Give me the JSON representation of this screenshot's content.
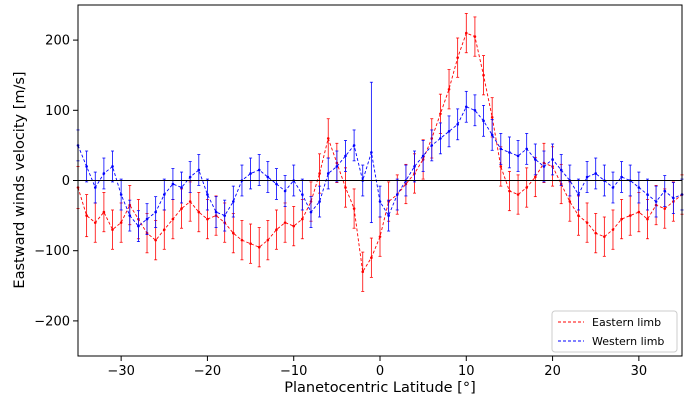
{
  "chart_data": {
    "type": "line",
    "xlabel": "Planetocentric Latitude [°]",
    "ylabel": "Eastward winds velocity [m/s]",
    "xlim": [
      -35,
      35
    ],
    "ylim": [
      -250,
      250
    ],
    "xticks": [
      -30,
      -20,
      -10,
      0,
      10,
      20,
      30
    ],
    "yticks": [
      -200,
      -100,
      0,
      100,
      200
    ],
    "x_tick_labels": [
      "−30",
      "−20",
      "−10",
      "0",
      "10",
      "20",
      "30"
    ],
    "y_tick_labels": [
      "−200",
      "−100",
      "0",
      "100",
      "200"
    ],
    "zero_line": true,
    "grid": false,
    "legend_position": "lower-right",
    "error_bars": true,
    "series": [
      {
        "name": "Eastern limb",
        "color": "#ff0000",
        "linestyle": "dashed",
        "points": [
          [
            -35,
            -10,
            30
          ],
          [
            -34,
            -50,
            30
          ],
          [
            -33,
            -60,
            28
          ],
          [
            -32,
            -45,
            28
          ],
          [
            -31,
            -70,
            28
          ],
          [
            -30,
            -60,
            28
          ],
          [
            -29,
            -35,
            28
          ],
          [
            -28,
            -55,
            28
          ],
          [
            -27,
            -75,
            28
          ],
          [
            -26,
            -85,
            28
          ],
          [
            -25,
            -70,
            28
          ],
          [
            -24,
            -55,
            28
          ],
          [
            -23,
            -40,
            28
          ],
          [
            -22,
            -30,
            28
          ],
          [
            -21,
            -45,
            28
          ],
          [
            -20,
            -55,
            28
          ],
          [
            -19,
            -50,
            28
          ],
          [
            -18,
            -60,
            28
          ],
          [
            -17,
            -75,
            28
          ],
          [
            -16,
            -85,
            28
          ],
          [
            -15,
            -90,
            28
          ],
          [
            -14,
            -95,
            28
          ],
          [
            -13,
            -85,
            28
          ],
          [
            -12,
            -70,
            28
          ],
          [
            -11,
            -60,
            28
          ],
          [
            -10,
            -65,
            28
          ],
          [
            -9,
            -55,
            28
          ],
          [
            -8,
            -30,
            28
          ],
          [
            -7,
            10,
            28
          ],
          [
            -6,
            60,
            28
          ],
          [
            -5,
            25,
            28
          ],
          [
            -4,
            -10,
            28
          ],
          [
            -3,
            -40,
            28
          ],
          [
            -2,
            -130,
            28
          ],
          [
            -1,
            -110,
            28
          ],
          [
            0,
            -80,
            28
          ],
          [
            1,
            -30,
            28
          ],
          [
            2,
            -20,
            28
          ],
          [
            3,
            -5,
            28
          ],
          [
            4,
            10,
            28
          ],
          [
            5,
            30,
            28
          ],
          [
            6,
            60,
            28
          ],
          [
            7,
            95,
            28
          ],
          [
            8,
            130,
            28
          ],
          [
            9,
            175,
            28
          ],
          [
            10,
            210,
            28
          ],
          [
            11,
            205,
            28
          ],
          [
            12,
            150,
            28
          ],
          [
            13,
            90,
            28
          ],
          [
            14,
            20,
            28
          ],
          [
            15,
            -15,
            28
          ],
          [
            16,
            -20,
            28
          ],
          [
            17,
            -10,
            28
          ],
          [
            18,
            5,
            28
          ],
          [
            19,
            25,
            28
          ],
          [
            20,
            20,
            28
          ],
          [
            21,
            -5,
            28
          ],
          [
            22,
            -30,
            28
          ],
          [
            23,
            -50,
            28
          ],
          [
            24,
            -60,
            28
          ],
          [
            25,
            -75,
            28
          ],
          [
            26,
            -80,
            28
          ],
          [
            27,
            -70,
            28
          ],
          [
            28,
            -55,
            28
          ],
          [
            29,
            -50,
            28
          ],
          [
            30,
            -45,
            28
          ],
          [
            31,
            -55,
            28
          ],
          [
            32,
            -35,
            28
          ],
          [
            33,
            -40,
            28
          ],
          [
            34,
            -30,
            28
          ],
          [
            35,
            -20,
            28
          ]
        ]
      },
      {
        "name": "Western limb",
        "color": "#0000ff",
        "linestyle": "dashed",
        "points": [
          [
            -35,
            50,
            22
          ],
          [
            -34,
            20,
            22
          ],
          [
            -33,
            -10,
            22
          ],
          [
            -32,
            10,
            22
          ],
          [
            -31,
            20,
            22
          ],
          [
            -30,
            -20,
            22
          ],
          [
            -29,
            -50,
            22
          ],
          [
            -28,
            -65,
            22
          ],
          [
            -27,
            -55,
            22
          ],
          [
            -26,
            -45,
            22
          ],
          [
            -25,
            -20,
            22
          ],
          [
            -24,
            -5,
            22
          ],
          [
            -23,
            -10,
            22
          ],
          [
            -22,
            5,
            22
          ],
          [
            -21,
            15,
            22
          ],
          [
            -20,
            -20,
            22
          ],
          [
            -19,
            -45,
            22
          ],
          [
            -18,
            -50,
            22
          ],
          [
            -17,
            -30,
            22
          ],
          [
            -16,
            0,
            22
          ],
          [
            -15,
            10,
            22
          ],
          [
            -14,
            15,
            22
          ],
          [
            -13,
            5,
            22
          ],
          [
            -12,
            -5,
            22
          ],
          [
            -11,
            -15,
            22
          ],
          [
            -10,
            0,
            22
          ],
          [
            -9,
            -20,
            22
          ],
          [
            -8,
            -45,
            22
          ],
          [
            -7,
            -30,
            22
          ],
          [
            -6,
            10,
            22
          ],
          [
            -5,
            20,
            22
          ],
          [
            -4,
            35,
            22
          ],
          [
            -3,
            50,
            22
          ],
          [
            -2,
            0,
            22
          ],
          [
            -1,
            40,
            100
          ],
          [
            0,
            -30,
            22
          ],
          [
            1,
            -50,
            22
          ],
          [
            2,
            -20,
            22
          ],
          [
            3,
            0,
            22
          ],
          [
            4,
            20,
            22
          ],
          [
            5,
            35,
            22
          ],
          [
            6,
            50,
            22
          ],
          [
            7,
            60,
            22
          ],
          [
            8,
            70,
            22
          ],
          [
            9,
            80,
            22
          ],
          [
            10,
            105,
            22
          ],
          [
            11,
            100,
            22
          ],
          [
            12,
            85,
            22
          ],
          [
            13,
            65,
            22
          ],
          [
            14,
            45,
            22
          ],
          [
            15,
            40,
            22
          ],
          [
            16,
            35,
            22
          ],
          [
            17,
            45,
            22
          ],
          [
            18,
            30,
            22
          ],
          [
            19,
            20,
            22
          ],
          [
            20,
            30,
            22
          ],
          [
            21,
            15,
            22
          ],
          [
            22,
            0,
            22
          ],
          [
            23,
            -20,
            22
          ],
          [
            24,
            5,
            22
          ],
          [
            25,
            10,
            22
          ],
          [
            26,
            0,
            22
          ],
          [
            27,
            -10,
            22
          ],
          [
            28,
            5,
            22
          ],
          [
            29,
            0,
            22
          ],
          [
            30,
            -10,
            22
          ],
          [
            31,
            -20,
            22
          ],
          [
            32,
            -30,
            22
          ],
          [
            33,
            -15,
            22
          ],
          [
            34,
            -25,
            22
          ],
          [
            35,
            -20,
            22
          ]
        ]
      }
    ]
  }
}
